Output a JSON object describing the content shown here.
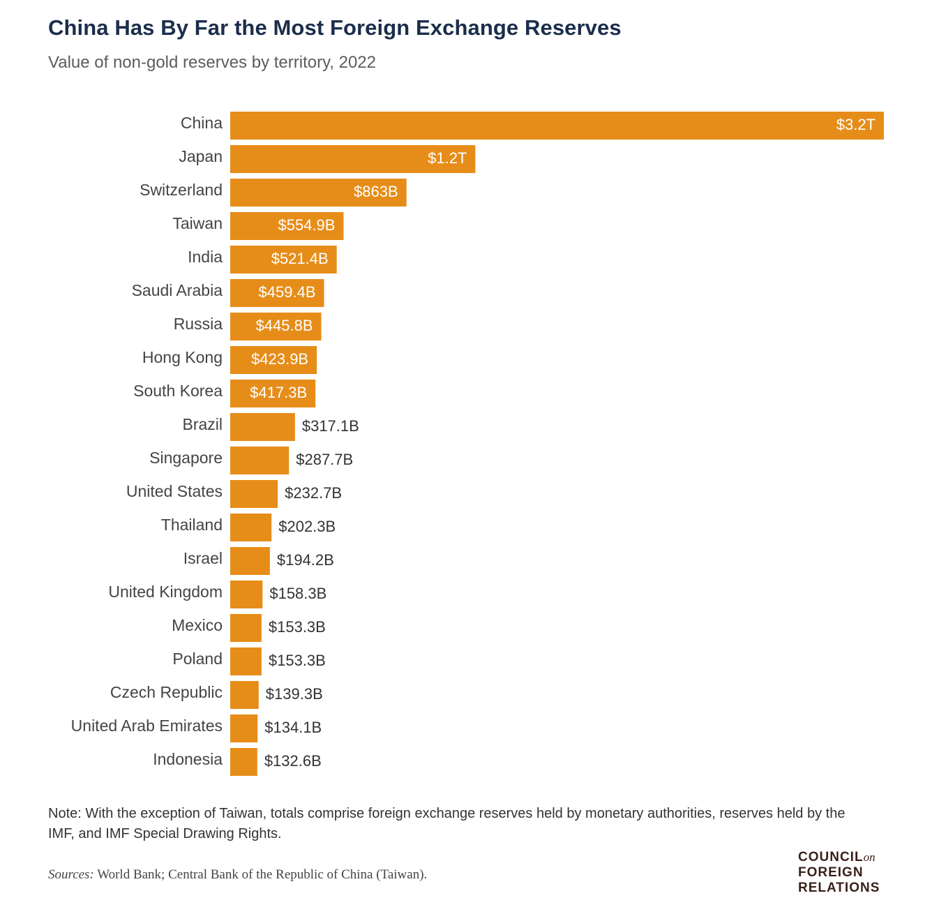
{
  "title": "China Has By Far the Most Foreign Exchange Reserves",
  "subtitle": "Value of non-gold reserves by territory, 2022",
  "note": "Note: With the exception of Taiwan, totals comprise foreign exchange reserves held by monetary authorities, reserves held by the IMF, and IMF Special Drawing Rights.",
  "sources_label": "Sources:",
  "sources_text": " World Bank; Central Bank of the Republic of China (Taiwan).",
  "logo": {
    "line1": "COUNCIL",
    "line1_suffix": "on",
    "line2": "FOREIGN",
    "line3": "RELATIONS"
  },
  "colors": {
    "bar": "#e68d19",
    "label_inside": "#ffffff",
    "label_outside": "#333333",
    "category_text": "#444444"
  },
  "chart_data": {
    "type": "bar",
    "orientation": "horizontal",
    "title": "China Has By Far the Most Foreign Exchange Reserves",
    "subtitle": "Value of non-gold reserves by territory, 2022",
    "unit": "USD billions",
    "categories": [
      "China",
      "Japan",
      "Switzerland",
      "Taiwan",
      "India",
      "Saudi Arabia",
      "Russia",
      "Hong Kong",
      "South Korea",
      "Brazil",
      "Singapore",
      "United States",
      "Thailand",
      "Israel",
      "United Kingdom",
      "Mexico",
      "Poland",
      "Czech Republic",
      "United Arab Emirates",
      "Indonesia"
    ],
    "values": [
      3200,
      1200,
      863,
      554.9,
      521.4,
      459.4,
      445.8,
      423.9,
      417.3,
      317.1,
      287.7,
      232.7,
      202.3,
      194.2,
      158.3,
      153.3,
      153.3,
      139.3,
      134.1,
      132.6
    ],
    "labels": [
      "$3.2T",
      "$1.2T",
      "$863B",
      "$554.9B",
      "$521.4B",
      "$459.4B",
      "$445.8B",
      "$423.9B",
      "$417.3B",
      "$317.1B",
      "$287.7B",
      "$232.7B",
      "$202.3B",
      "$194.2B",
      "$158.3B",
      "$153.3B",
      "$153.3B",
      "$139.3B",
      "$134.1B",
      "$132.6B"
    ],
    "xlim": [
      0,
      3200
    ],
    "grid": false,
    "legend": "none"
  }
}
